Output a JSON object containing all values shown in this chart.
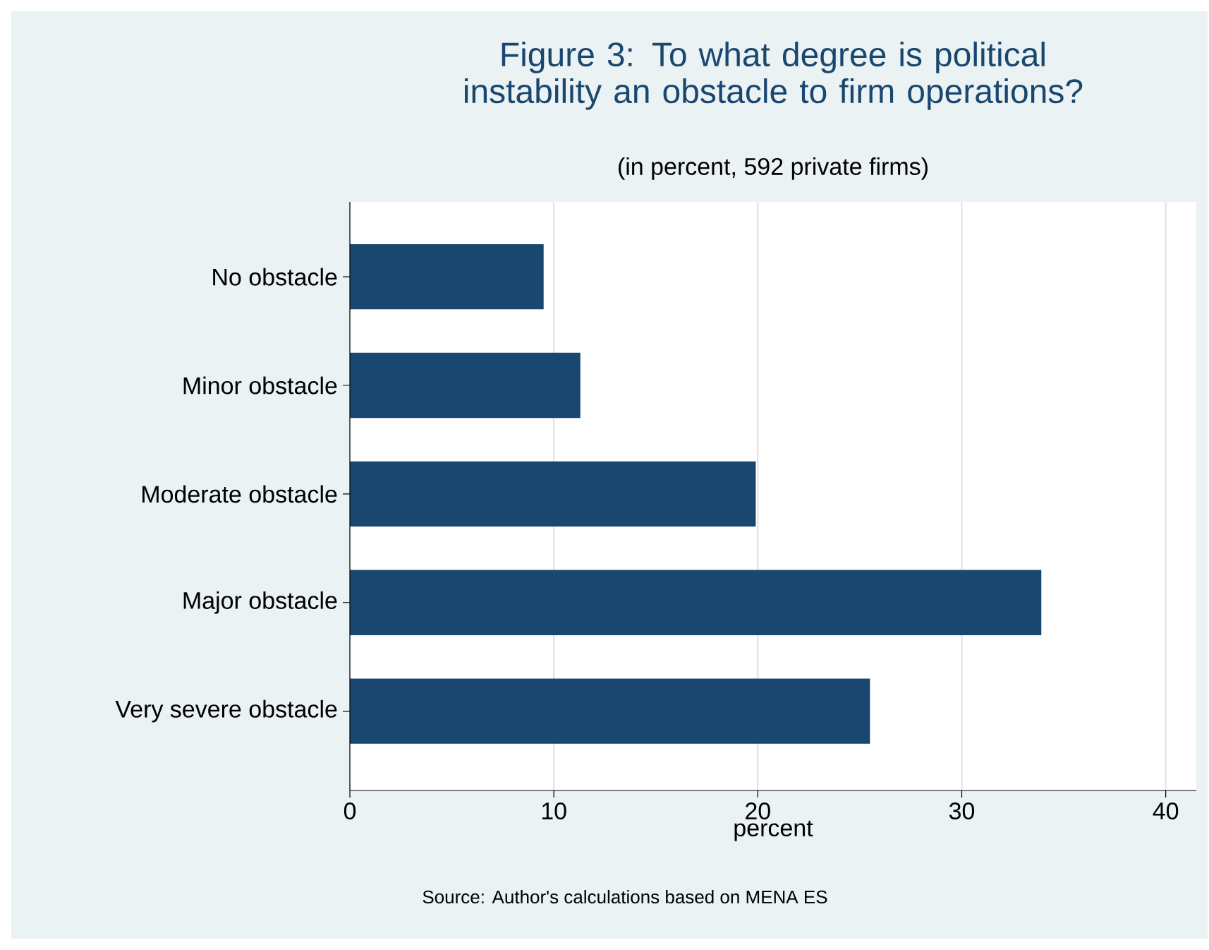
{
  "chart_data": {
    "type": "bar",
    "orientation": "horizontal",
    "title": "Figure 3: To what degree is political instability an obstacle to firm operations?",
    "subtitle": "(in percent, 592 private firms)",
    "xlabel": "percent",
    "categories": [
      "No obstacle",
      "Minor obstacle",
      "Moderate obstacle",
      "Major obstacle",
      "Very severe obstacle"
    ],
    "values": [
      9.5,
      11.3,
      19.9,
      33.9,
      25.5
    ],
    "color": "#1a476f",
    "xlim": [
      0,
      41.5
    ],
    "xticks": [
      0,
      10,
      20,
      30,
      40
    ],
    "grid": "x",
    "annotations": [
      "Source: Author's calculations based on MENA ES"
    ]
  }
}
